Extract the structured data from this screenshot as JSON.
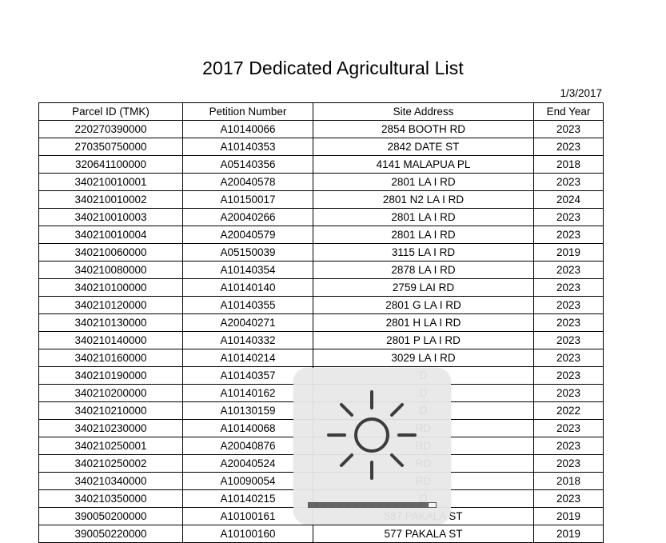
{
  "document": {
    "title": "2017 Dedicated Agricultural List",
    "date": "1/3/2017",
    "columns": [
      "Parcel ID (TMK)",
      "Petition Number",
      "Site Address",
      "End Year"
    ],
    "rows": [
      [
        "220270390000",
        "A10140066",
        "2854 BOOTH RD",
        "2023"
      ],
      [
        "270350750000",
        "A10140353",
        "2842 DATE ST",
        "2023"
      ],
      [
        "320641100000",
        "A05140356",
        "4141 MALAPUA PL",
        "2018"
      ],
      [
        "340210010001",
        "A20040578",
        "2801 LA I RD",
        "2023"
      ],
      [
        "340210010002",
        "A10150017",
        "2801 N2 LA I RD",
        "2024"
      ],
      [
        "340210010003",
        "A20040266",
        "2801 LA I RD",
        "2023"
      ],
      [
        "340210010004",
        "A20040579",
        "2801 LA I RD",
        "2023"
      ],
      [
        "340210060000",
        "A05150039",
        "3115 LA I RD",
        "2019"
      ],
      [
        "340210080000",
        "A10140354",
        "2878 LA I RD",
        "2023"
      ],
      [
        "340210100000",
        "A10140140",
        "2759 LAI RD",
        "2023"
      ],
      [
        "340210120000",
        "A10140355",
        "2801 G LA I RD",
        "2023"
      ],
      [
        "340210130000",
        "A20040271",
        "2801 H LA I RD",
        "2023"
      ],
      [
        "340210140000",
        "A10140332",
        "2801 P LA I RD",
        "2023"
      ],
      [
        "340210160000",
        "A10140214",
        "3029 LA I RD",
        "2023"
      ],
      [
        "340210190000",
        "A10140357",
        "D",
        "2023"
      ],
      [
        "340210200000",
        "A10140162",
        "D",
        "2023"
      ],
      [
        "340210210000",
        "A10130159",
        "D",
        "2022"
      ],
      [
        "340210230000",
        "A10140068",
        "RD",
        "2023"
      ],
      [
        "340210250001",
        "A20040876",
        "RD",
        "2023"
      ],
      [
        "340210250002",
        "A20040524",
        "RD",
        "2023"
      ],
      [
        "340210340000",
        "A10090054",
        "RD",
        "2018"
      ],
      [
        "340210350000",
        "A10140215",
        "D",
        "2023"
      ],
      [
        "390050200000",
        "A10100161",
        "587 PAKALA ST",
        "2019"
      ],
      [
        "390050220000",
        "A10100160",
        "577 PAKALA ST",
        "2019"
      ]
    ]
  },
  "brightness_hud": {
    "icon": "sun-icon",
    "level": 0.94,
    "segments": 16
  }
}
